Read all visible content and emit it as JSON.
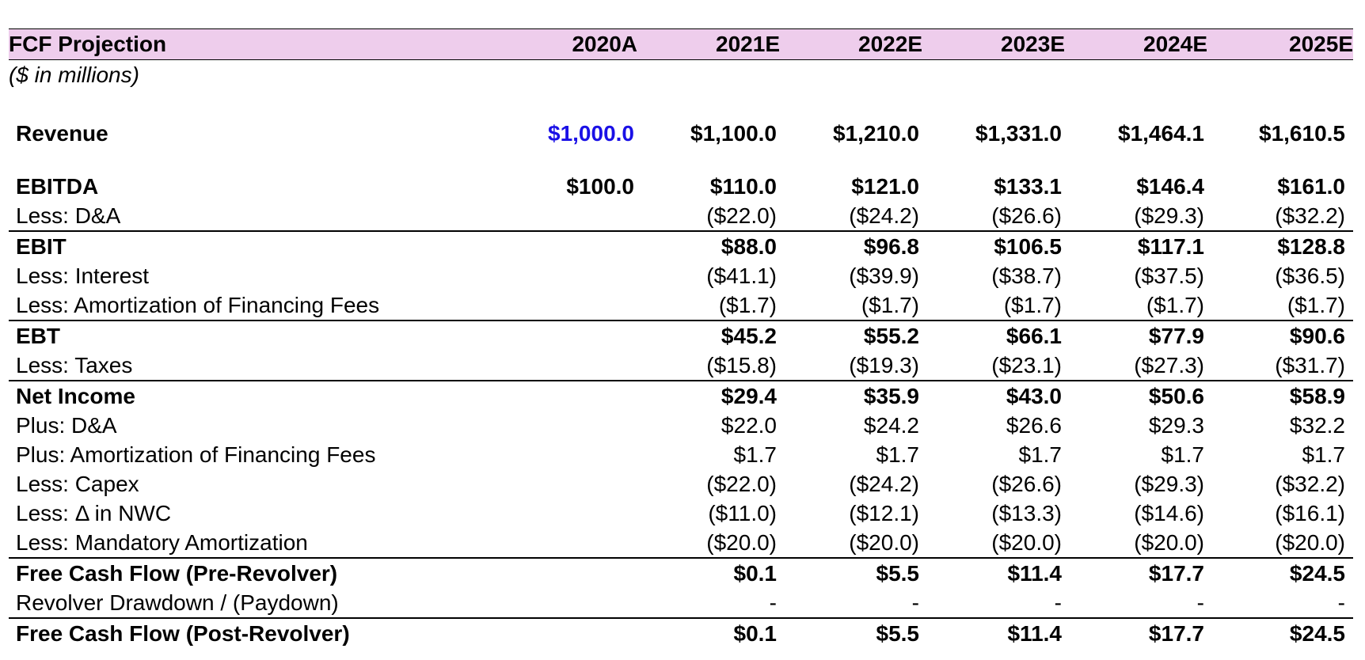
{
  "header": {
    "title": "FCF Projection",
    "years": [
      "2020A",
      "2021E",
      "2022E",
      "2023E",
      "2024E",
      "2025E"
    ]
  },
  "subtitle": "($ in millions)",
  "rows": {
    "revenue": {
      "label": "Revenue",
      "values": [
        "$1,000.0",
        "$1,100.0",
        "$1,210.0",
        "$1,331.0",
        "$1,464.1",
        "$1,610.5"
      ]
    },
    "ebitda": {
      "label": "EBITDA",
      "values": [
        "$100.0",
        "$110.0",
        "$121.0",
        "$133.1",
        "$146.4",
        "$161.0"
      ]
    },
    "less_da": {
      "label": "Less: D&A",
      "values": [
        "",
        "($22.0)",
        "($24.2)",
        "($26.6)",
        "($29.3)",
        "($32.2)"
      ]
    },
    "ebit": {
      "label": "EBIT",
      "values": [
        "",
        "$88.0",
        "$96.8",
        "$106.5",
        "$117.1",
        "$128.8"
      ]
    },
    "less_interest": {
      "label": "Less: Interest",
      "values": [
        "",
        "($41.1)",
        "($39.9)",
        "($38.7)",
        "($37.5)",
        "($36.5)"
      ]
    },
    "less_amort_fees": {
      "label": "Less: Amortization of Financing Fees",
      "values": [
        "",
        "($1.7)",
        "($1.7)",
        "($1.7)",
        "($1.7)",
        "($1.7)"
      ]
    },
    "ebt": {
      "label": "EBT",
      "values": [
        "",
        "$45.2",
        "$55.2",
        "$66.1",
        "$77.9",
        "$90.6"
      ]
    },
    "less_taxes": {
      "label": "Less: Taxes",
      "values": [
        "",
        "($15.8)",
        "($19.3)",
        "($23.1)",
        "($27.3)",
        "($31.7)"
      ]
    },
    "net_income": {
      "label": "Net Income",
      "values": [
        "",
        "$29.4",
        "$35.9",
        "$43.0",
        "$50.6",
        "$58.9"
      ]
    },
    "plus_da": {
      "label": "Plus: D&A",
      "values": [
        "",
        "$22.0",
        "$24.2",
        "$26.6",
        "$29.3",
        "$32.2"
      ]
    },
    "plus_amort_fees": {
      "label": "Plus: Amortization of Financing Fees",
      "values": [
        "",
        "$1.7",
        "$1.7",
        "$1.7",
        "$1.7",
        "$1.7"
      ]
    },
    "less_capex": {
      "label": "Less: Capex",
      "values": [
        "",
        "($22.0)",
        "($24.2)",
        "($26.6)",
        "($29.3)",
        "($32.2)"
      ]
    },
    "less_nwc": {
      "label": "Less: Δ in NWC",
      "values": [
        "",
        "($11.0)",
        "($12.1)",
        "($13.3)",
        "($14.6)",
        "($16.1)"
      ]
    },
    "less_mand_amort": {
      "label": "Less: Mandatory Amortization",
      "values": [
        "",
        "($20.0)",
        "($20.0)",
        "($20.0)",
        "($20.0)",
        "($20.0)"
      ]
    },
    "fcf_pre": {
      "label": "Free Cash Flow (Pre-Revolver)",
      "values": [
        "",
        "$0.1",
        "$5.5",
        "$11.4",
        "$17.7",
        "$24.5"
      ]
    },
    "revolver": {
      "label": "Revolver Drawdown / (Paydown)",
      "values": [
        "",
        "-",
        "-",
        "-",
        "-",
        "-"
      ]
    },
    "fcf_post": {
      "label": "Free Cash Flow (Post-Revolver)",
      "values": [
        "",
        "$0.1",
        "$5.5",
        "$11.4",
        "$17.7",
        "$24.5"
      ]
    }
  },
  "colors": {
    "header_fill": "#eecdec",
    "input_blue": "#1a10e6"
  }
}
